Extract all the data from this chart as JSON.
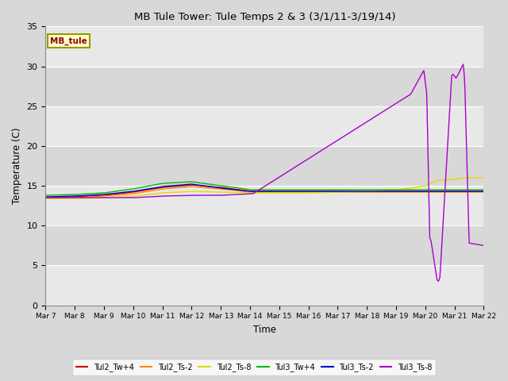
{
  "title": "MB Tule Tower: Tule Temps 2 & 3 (3/1/11-3/19/14)",
  "xlabel": "Time",
  "ylabel": "Temperature (C)",
  "ylim": [
    0,
    35
  ],
  "yticks": [
    0,
    5,
    10,
    15,
    20,
    25,
    30,
    35
  ],
  "fig_bg_color": "#d8d8d8",
  "plot_bg_color": "#e8e8e8",
  "grid_color": "#ffffff",
  "legend_label": "MB_tule",
  "legend_bg": "#ffffcc",
  "legend_border": "#999900",
  "series_colors": {
    "Tul2_Tw+4": "#cc0000",
    "Tul2_Ts-2": "#ff8800",
    "Tul2_Ts-8": "#dddd00",
    "Tul3_Tw+4": "#00bb00",
    "Tul3_Ts-2": "#0000cc",
    "Tul3_Ts-8": "#aa00cc"
  },
  "xtick_days": [
    7,
    8,
    9,
    10,
    11,
    12,
    13,
    14,
    15,
    16,
    17,
    18,
    19,
    20,
    21,
    22
  ],
  "red_xp": [
    7,
    8,
    9,
    10,
    11,
    12,
    13,
    14,
    15,
    16,
    17,
    18,
    19,
    20,
    21,
    22
  ],
  "red_fp": [
    13.5,
    13.6,
    13.8,
    14.2,
    14.8,
    15.1,
    14.8,
    14.3,
    14.3,
    14.3,
    14.3,
    14.3,
    14.3,
    14.3,
    14.3,
    14.3
  ],
  "orange_xp": [
    7,
    8,
    9,
    10,
    11,
    12,
    13,
    14,
    15,
    16,
    17,
    18,
    19,
    20,
    21,
    22
  ],
  "orange_fp": [
    13.4,
    13.5,
    13.7,
    14.0,
    14.6,
    14.9,
    14.6,
    14.2,
    14.2,
    14.2,
    14.2,
    14.2,
    14.2,
    14.2,
    14.2,
    14.2
  ],
  "yellow_xp": [
    7,
    8,
    9,
    10,
    11,
    12,
    13,
    14,
    15,
    16,
    17,
    18,
    19,
    19.5,
    20,
    20.3,
    20.5,
    21,
    21.3,
    21.5,
    22
  ],
  "yellow_fp": [
    13.4,
    13.4,
    13.5,
    13.7,
    14.1,
    14.3,
    14.2,
    14.1,
    14.1,
    14.1,
    14.2,
    14.3,
    14.5,
    14.7,
    15.0,
    15.5,
    15.7,
    15.8,
    16.0,
    16.0,
    16.0
  ],
  "green_xp": [
    7,
    8,
    9,
    10,
    11,
    12,
    13,
    14,
    15,
    16,
    17,
    18,
    19,
    20,
    21,
    22
  ],
  "green_fp": [
    13.8,
    13.9,
    14.1,
    14.6,
    15.3,
    15.5,
    15.0,
    14.5,
    14.5,
    14.5,
    14.5,
    14.5,
    14.5,
    14.5,
    14.5,
    14.5
  ],
  "blue_xp": [
    7,
    8,
    9,
    10,
    11,
    12,
    13,
    14,
    15,
    16,
    17,
    18,
    19,
    20,
    21,
    22
  ],
  "blue_fp": [
    13.6,
    13.7,
    13.9,
    14.3,
    14.9,
    15.2,
    14.7,
    14.3,
    14.3,
    14.3,
    14.3,
    14.3,
    14.3,
    14.3,
    14.3,
    14.3
  ],
  "purple_xp": [
    7,
    8,
    9,
    10,
    11,
    12,
    13,
    13.5,
    14.0,
    14.1,
    19.5,
    19.95,
    20.05,
    20.15,
    20.2,
    20.4,
    20.45,
    20.5,
    20.9,
    20.95,
    21.05,
    21.1,
    21.3,
    21.35,
    21.5,
    22
  ],
  "purple_fp": [
    13.5,
    13.5,
    13.5,
    13.5,
    13.7,
    13.8,
    13.8,
    13.9,
    14.0,
    14.0,
    26.5,
    29.5,
    26.5,
    8.5,
    8.0,
    3.2,
    3.0,
    3.5,
    28.8,
    29.0,
    28.5,
    28.8,
    30.3,
    28.0,
    7.8,
    7.5
  ]
}
